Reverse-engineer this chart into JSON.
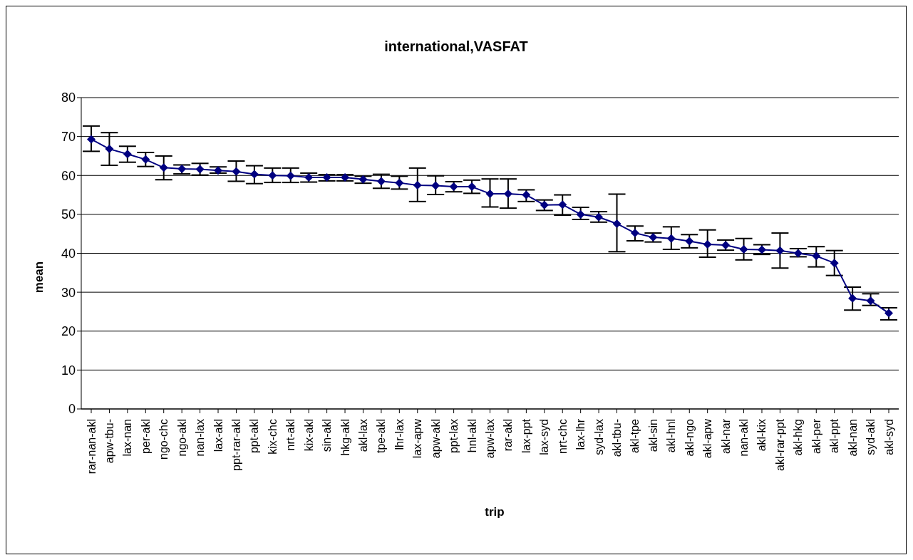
{
  "chart_data": {
    "type": "line",
    "title": "international,VASFAT",
    "xlabel": "trip",
    "ylabel": "mean",
    "categories": [
      "rar-nan-akl",
      "apw-tbu-",
      "lax-nan",
      "per-akl",
      "ngo-chc",
      "ngo-akl",
      "nan-lax",
      "lax-akl",
      "ppt-rar-akl",
      "ppt-akl",
      "kix-chc",
      "nrt-akl",
      "kix-akl",
      "sin-akl",
      "hkg-akl",
      "akl-lax",
      "tpe-akl",
      "lhr-lax",
      "lax-apw",
      "apw-akl",
      "ppt-lax",
      "hnl-akl",
      "apw-lax",
      "rar-akl",
      "lax-ppt",
      "lax-syd",
      "nrt-chc",
      "lax-lhr",
      "syd-lax",
      "akl-tbu-",
      "akl-tpe",
      "akl-sin",
      "akl-hnl",
      "akl-ngo",
      "akl-apw",
      "akl-nar",
      "nan-akl",
      "akl-kix",
      "akl-rar-ppt",
      "akl-hkg",
      "akl-per",
      "akl-ppt",
      "akl-nan",
      "syd-akl",
      "akl-syd"
    ],
    "series": [
      {
        "color": "#000080",
        "values": [
          69.3,
          66.8,
          65.5,
          64.1,
          62.0,
          61.7,
          61.6,
          61.3,
          61.0,
          60.3,
          60.0,
          59.9,
          59.5,
          59.5,
          59.5,
          59.0,
          58.5,
          58.1,
          57.5,
          57.4,
          57.1,
          57.1,
          55.3,
          55.3,
          55.0,
          52.4,
          52.5,
          50.0,
          49.3,
          47.6,
          45.2,
          44.1,
          43.8,
          43.1,
          42.3,
          42.1,
          41.0,
          40.9,
          40.7,
          40.0,
          39.3,
          37.5,
          28.4,
          27.8,
          24.6
        ],
        "errors": [
          [
            66.2,
            72.7
          ],
          [
            62.6,
            71.0
          ],
          [
            63.4,
            67.5
          ],
          [
            62.3,
            65.9
          ],
          [
            58.9,
            65.0
          ],
          [
            60.4,
            62.7
          ],
          [
            60.1,
            63.1
          ],
          [
            60.6,
            62.2
          ],
          [
            58.5,
            63.7
          ],
          [
            57.9,
            62.5
          ],
          [
            58.2,
            61.9
          ],
          [
            58.2,
            61.9
          ],
          [
            58.3,
            60.6
          ],
          [
            58.6,
            60.2
          ],
          [
            58.6,
            60.2
          ],
          [
            58.0,
            59.8
          ],
          [
            56.7,
            60.3
          ],
          [
            56.5,
            59.8
          ],
          [
            53.3,
            61.9
          ],
          [
            55.1,
            59.9
          ],
          [
            55.8,
            58.4
          ],
          [
            55.4,
            58.8
          ],
          [
            51.9,
            59.1
          ],
          [
            51.6,
            59.1
          ],
          [
            53.3,
            56.3
          ],
          [
            51.0,
            53.7
          ],
          [
            49.8,
            55.0
          ],
          [
            48.7,
            51.8
          ],
          [
            48.0,
            50.7
          ],
          [
            40.4,
            55.2
          ],
          [
            43.2,
            47.0
          ],
          [
            42.9,
            45.2
          ],
          [
            41.0,
            46.8
          ],
          [
            41.4,
            44.8
          ],
          [
            39.0,
            46.0
          ],
          [
            40.8,
            43.4
          ],
          [
            38.3,
            43.8
          ],
          [
            39.7,
            42.2
          ],
          [
            36.2,
            45.2
          ],
          [
            39.1,
            41.2
          ],
          [
            36.5,
            41.7
          ],
          [
            34.3,
            40.7
          ],
          [
            25.4,
            31.3
          ],
          [
            26.6,
            29.6
          ],
          [
            22.9,
            26.0
          ]
        ]
      }
    ],
    "ylim": [
      0,
      80
    ],
    "yticks": [
      0,
      10,
      20,
      30,
      40,
      50,
      60,
      70,
      80
    ],
    "grid": "y",
    "legend": false,
    "marker": "diamond",
    "line_style": "solid"
  }
}
